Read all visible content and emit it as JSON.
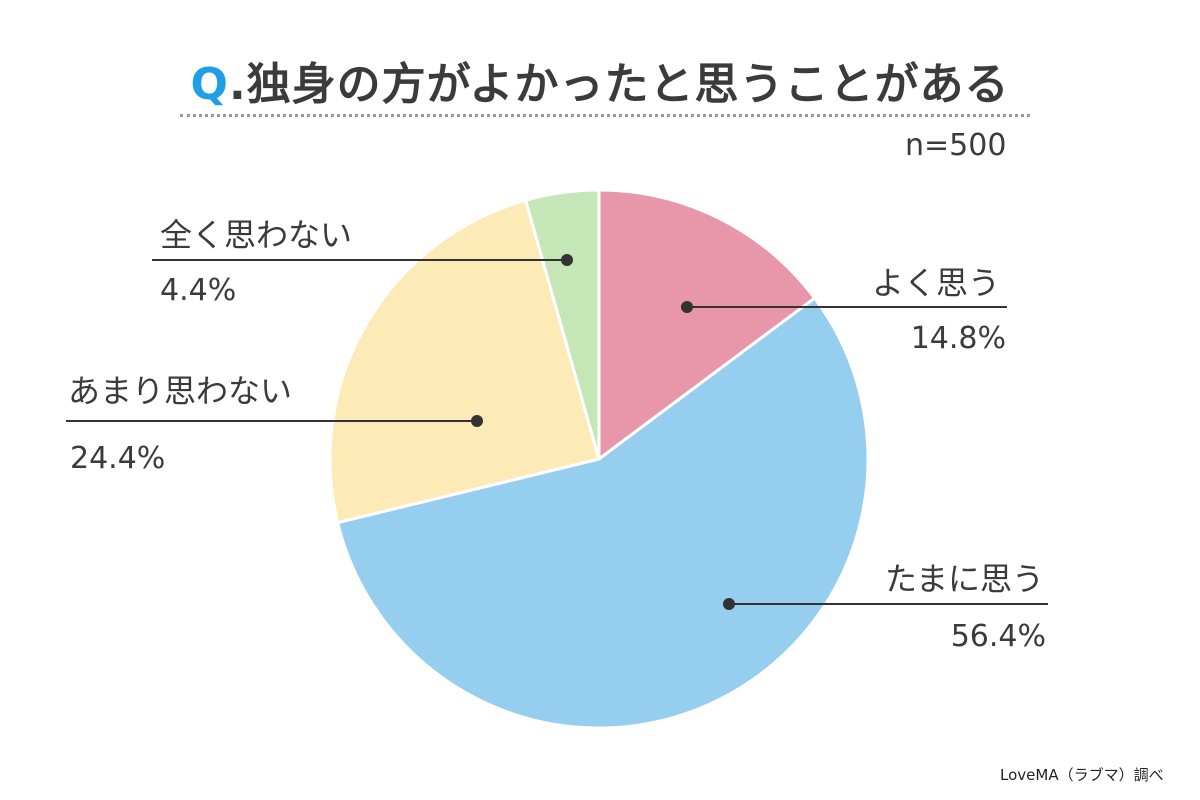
{
  "chart_data": {
    "type": "pie",
    "title_prefix": "Q",
    "title": ".独身の方がよかったと思うことがある",
    "sample": "n=500",
    "slices": [
      {
        "label": "よく思う",
        "value": 14.8,
        "value_text": "14.8%",
        "color": "#e897aa"
      },
      {
        "label": "たまに思う",
        "value": 56.4,
        "value_text": "56.4%",
        "color": "#95ceee"
      },
      {
        "label": "あまり思わない",
        "value": 24.4,
        "value_text": "24.4%",
        "color": "#fdebb7"
      },
      {
        "label": "全く思わない",
        "value": 4.4,
        "value_text": "4.4%",
        "color": "#c5e7b8"
      }
    ]
  },
  "credit": "LoveMA（ラブマ）調べ"
}
